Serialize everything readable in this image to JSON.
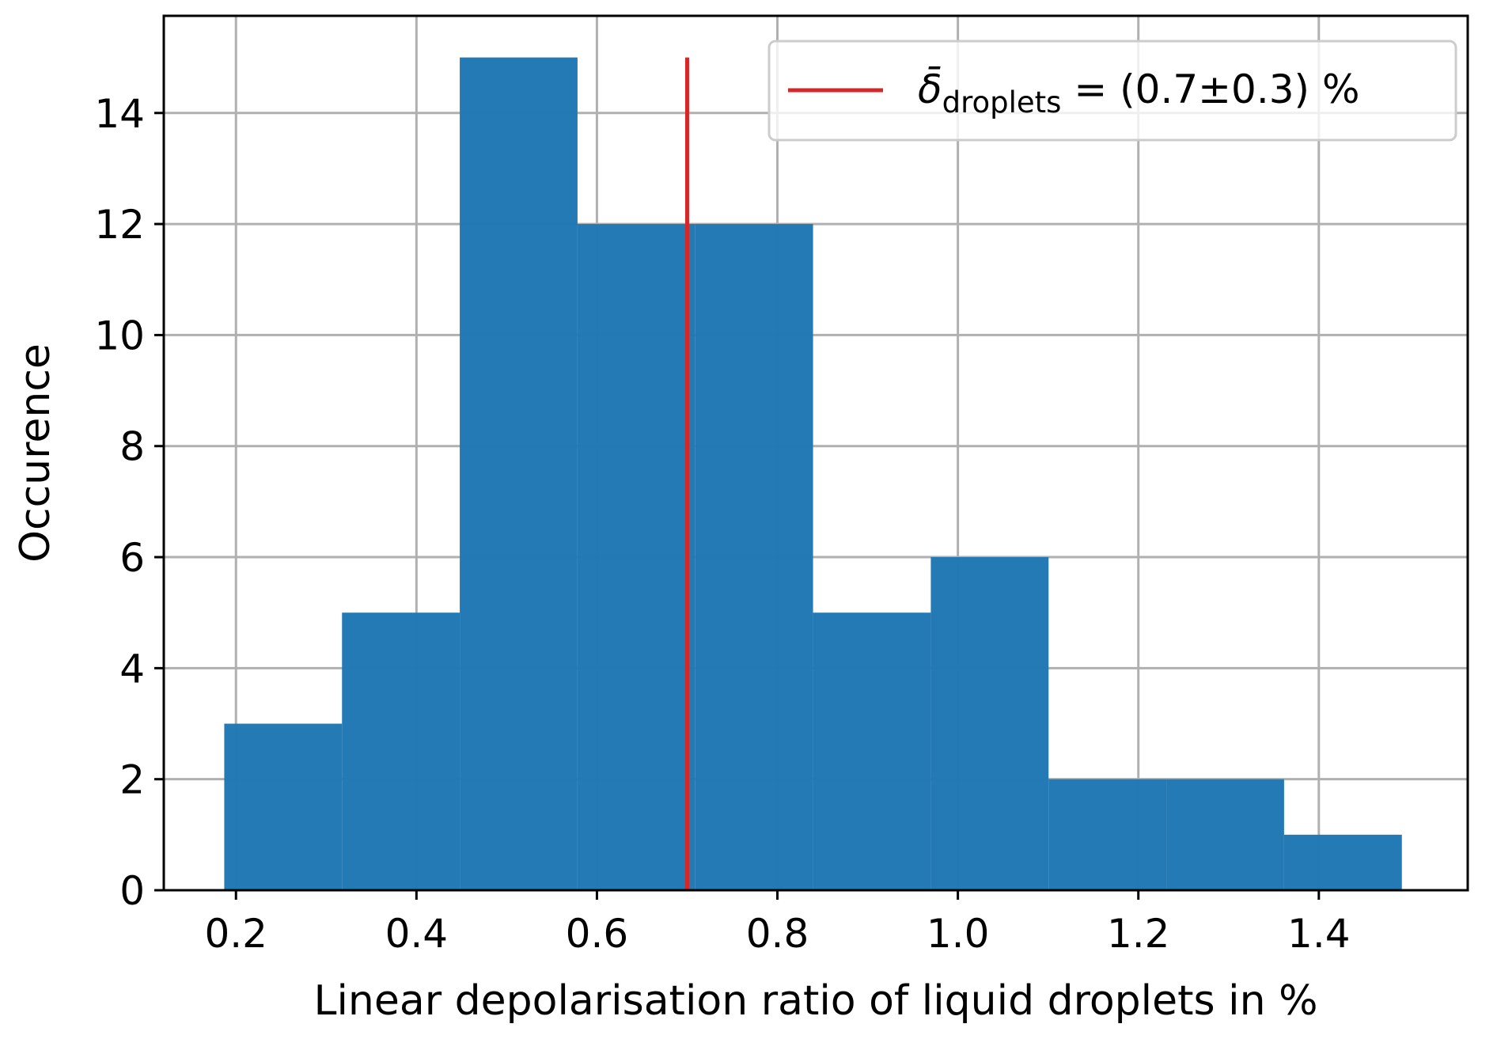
{
  "chart_data": {
    "type": "bar",
    "histogram": true,
    "bin_edges": [
      0.187,
      0.3175,
      0.448,
      0.5785,
      0.709,
      0.8395,
      0.97,
      1.1005,
      1.231,
      1.3615,
      1.492
    ],
    "values": [
      3,
      5,
      15,
      12,
      12,
      5,
      6,
      2,
      2,
      1
    ],
    "mean_line": {
      "x": 0.7,
      "y_top": 15
    },
    "xlabel": "Linear depolarisation ratio of liquid droplets in %",
    "ylabel": "Occurence",
    "xlim": [
      0.12,
      1.565
    ],
    "ylim": [
      0,
      15.75
    ],
    "x_ticks": [
      "0.2",
      "0.4",
      "0.6",
      "0.8",
      "1.0",
      "1.2",
      "1.4"
    ],
    "y_ticks": [
      "0",
      "2",
      "4",
      "6",
      "8",
      "10",
      "12",
      "14"
    ],
    "grid": true,
    "legend": {
      "placement": "upper right",
      "symbol": "δ̄",
      "subscript": "droplets",
      "rest": " = (0.7±0.3) %"
    },
    "colors": {
      "bar": "#1f77b4",
      "mean_line": "#d62728"
    }
  }
}
